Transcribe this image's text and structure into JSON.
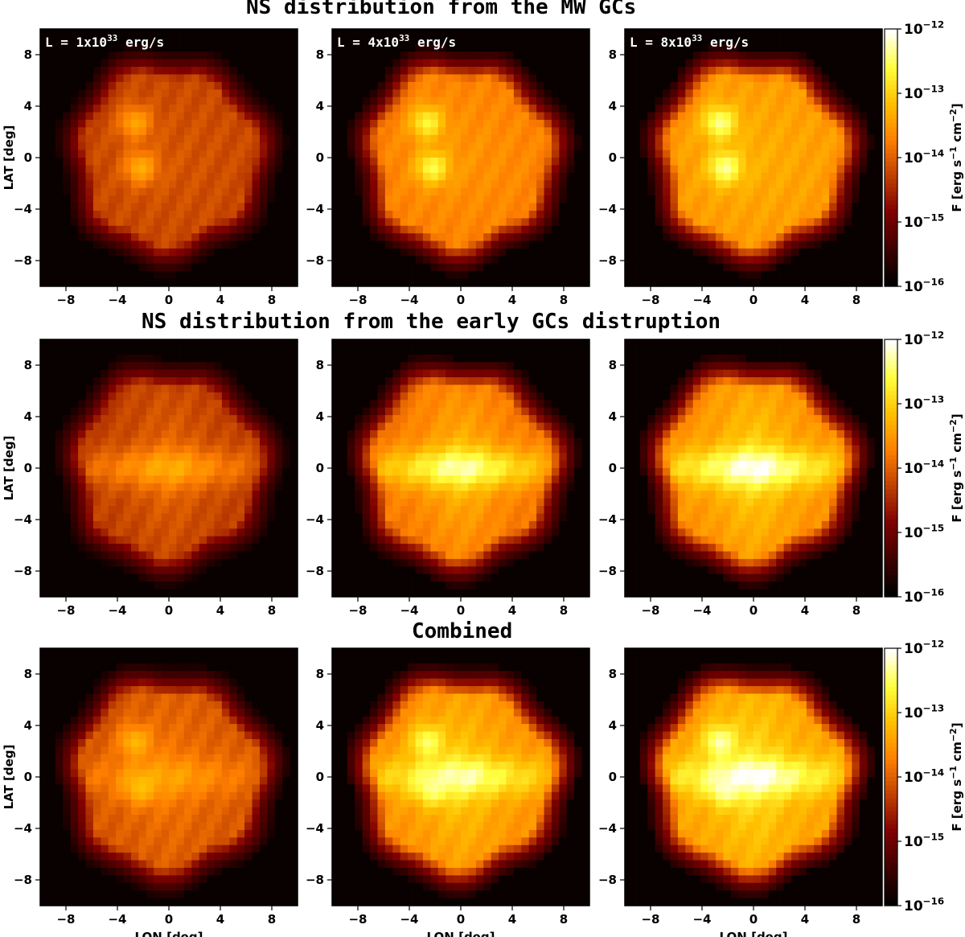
{
  "figure": {
    "title_row1": "NS distribution from the MW GCs",
    "title_row2": "NS distribution from the early GCs distruption",
    "title_row3": "Combined"
  },
  "colormap": {
    "name": "afmhot",
    "stops": [
      "#000000",
      "#400000",
      "#800000",
      "#c04000",
      "#ff8000",
      "#ffc000",
      "#ffff40",
      "#ffffff"
    ]
  },
  "chart_data": [
    {
      "type": "heatmap",
      "row": "MW GCs",
      "panel_label": "L = 1x10",
      "panel_label_exp": "33",
      "panel_label_unit": "erg/s",
      "luminosity_erg_s": 1e+33,
      "xlabel": "",
      "ylabel": "LAT [deg]",
      "xlim": [
        -10,
        10
      ],
      "ylim": [
        -10,
        10
      ],
      "xticks": [
        "-8",
        "-4",
        "0",
        "4",
        "8"
      ],
      "yticks": [
        "8",
        "4",
        "0",
        "-4",
        "-8"
      ],
      "disk_radius_deg": 7.6,
      "disk_base_level": 0.48,
      "hot_spots": [
        {
          "lon": -2.6,
          "lat": 2.7,
          "level": 0.66
        },
        {
          "lon": -2.2,
          "lat": -0.8,
          "level": 0.68
        }
      ],
      "colorbar": {
        "label": "F [erg s",
        "label_exp1": "−1",
        "label_mid": " cm",
        "label_exp2": "−2",
        "label_end": "]",
        "ticks": [
          "10",
          "10",
          "10",
          "10",
          "10"
        ],
        "tick_exps": [
          "−12",
          "−13",
          "−14",
          "−15",
          "−16"
        ],
        "vmin": 1e-16,
        "vmax": 1e-12
      }
    },
    {
      "type": "heatmap",
      "row": "MW GCs",
      "panel_label": "L = 4x10",
      "panel_label_exp": "33",
      "panel_label_unit": "erg/s",
      "luminosity_erg_s": 4e+33,
      "xlabel": "",
      "ylabel": "",
      "xlim": [
        -10,
        10
      ],
      "ylim": [
        -10,
        10
      ],
      "xticks": [
        "-8",
        "-4",
        "0",
        "4",
        "8"
      ],
      "yticks": [
        "8",
        "4",
        "0",
        "-4",
        "-8"
      ],
      "disk_radius_deg": 7.6,
      "disk_base_level": 0.62,
      "hot_spots": [
        {
          "lon": -2.6,
          "lat": 2.7,
          "level": 0.85
        },
        {
          "lon": -2.2,
          "lat": -0.8,
          "level": 0.87
        }
      ]
    },
    {
      "type": "heatmap",
      "row": "MW GCs",
      "panel_label": "L = 8x10",
      "panel_label_exp": "33",
      "panel_label_unit": "erg/s",
      "luminosity_erg_s": 8e+33,
      "xlabel": "",
      "ylabel": "",
      "xlim": [
        -10,
        10
      ],
      "ylim": [
        -10,
        10
      ],
      "xticks": [
        "-8",
        "-4",
        "0",
        "4",
        "8"
      ],
      "yticks": [
        "8",
        "4",
        "0",
        "-4",
        "-8"
      ],
      "disk_radius_deg": 7.6,
      "disk_base_level": 0.68,
      "hot_spots": [
        {
          "lon": -2.6,
          "lat": 2.7,
          "level": 0.92
        },
        {
          "lon": -2.2,
          "lat": -0.8,
          "level": 0.93
        }
      ]
    },
    {
      "type": "heatmap",
      "row": "early GCs disruption",
      "xlabel": "",
      "ylabel": "LAT [deg]",
      "xlim": [
        -10,
        10
      ],
      "ylim": [
        -10,
        10
      ],
      "xticks": [
        "-8",
        "-4",
        "0",
        "4",
        "8"
      ],
      "yticks": [
        "8",
        "4",
        "0",
        "-4",
        "-8"
      ],
      "disk_radius_deg": 7.7,
      "disk_base_level": 0.46,
      "central_bar": {
        "level": 0.62
      },
      "colorbar": {
        "label": "F [erg s",
        "label_exp1": "−1",
        "label_mid": " cm",
        "label_exp2": "−2",
        "label_end": "]",
        "ticks": [
          "10",
          "10",
          "10",
          "10",
          "10"
        ],
        "tick_exps": [
          "−12",
          "−13",
          "−14",
          "−15",
          "−16"
        ],
        "vmin": 1e-16,
        "vmax": 1e-12
      }
    },
    {
      "type": "heatmap",
      "row": "early GCs disruption",
      "xlabel": "",
      "ylabel": "",
      "xlim": [
        -10,
        10
      ],
      "ylim": [
        -10,
        10
      ],
      "xticks": [
        "-8",
        "-4",
        "0",
        "4",
        "8"
      ],
      "yticks": [
        "8",
        "4",
        "0",
        "-4",
        "-8"
      ],
      "disk_radius_deg": 7.7,
      "disk_base_level": 0.6,
      "central_bar": {
        "level": 0.86
      }
    },
    {
      "type": "heatmap",
      "row": "early GCs disruption",
      "xlabel": "",
      "ylabel": "",
      "xlim": [
        -10,
        10
      ],
      "ylim": [
        -10,
        10
      ],
      "xticks": [
        "-8",
        "-4",
        "0",
        "4",
        "8"
      ],
      "yticks": [
        "8",
        "4",
        "0",
        "-4",
        "-8"
      ],
      "disk_radius_deg": 7.7,
      "disk_base_level": 0.66,
      "central_bar": {
        "level": 0.92
      }
    },
    {
      "type": "heatmap",
      "row": "Combined",
      "xlabel": "LON [deg]",
      "ylabel": "LAT [deg]",
      "xlim": [
        -10,
        10
      ],
      "ylim": [
        -10,
        10
      ],
      "xticks": [
        "-8",
        "-4",
        "0",
        "4",
        "8"
      ],
      "yticks": [
        "8",
        "4",
        "0",
        "-4",
        "-8"
      ],
      "disk_radius_deg": 7.8,
      "disk_base_level": 0.52,
      "central_bar": {
        "level": 0.62
      },
      "hot_spots": [
        {
          "lon": -2.6,
          "lat": 2.7,
          "level": 0.7
        },
        {
          "lon": -2.2,
          "lat": -0.8,
          "level": 0.72
        }
      ],
      "colorbar": {
        "label": "F [erg s",
        "label_exp1": "−1",
        "label_mid": " cm",
        "label_exp2": "−2",
        "label_end": "]",
        "ticks": [
          "10",
          "10",
          "10",
          "10",
          "10"
        ],
        "tick_exps": [
          "−12",
          "−13",
          "−14",
          "−15",
          "−16"
        ],
        "vmin": 1e-16,
        "vmax": 1e-12
      }
    },
    {
      "type": "heatmap",
      "row": "Combined",
      "xlabel": "LON [deg]",
      "ylabel": "",
      "xlim": [
        -10,
        10
      ],
      "ylim": [
        -10,
        10
      ],
      "xticks": [
        "-8",
        "-4",
        "0",
        "4",
        "8"
      ],
      "yticks": [
        "8",
        "4",
        "0",
        "-4",
        "-8"
      ],
      "disk_radius_deg": 7.8,
      "disk_base_level": 0.66,
      "central_bar": {
        "level": 0.88
      },
      "hot_spots": [
        {
          "lon": -2.6,
          "lat": 2.7,
          "level": 0.9
        },
        {
          "lon": -2.2,
          "lat": -0.8,
          "level": 0.92
        }
      ]
    },
    {
      "type": "heatmap",
      "row": "Combined",
      "xlabel": "LON [deg]",
      "ylabel": "",
      "xlim": [
        -10,
        10
      ],
      "ylim": [
        -10,
        10
      ],
      "xticks": [
        "-8",
        "-4",
        "0",
        "4",
        "8"
      ],
      "yticks": [
        "8",
        "4",
        "0",
        "-4",
        "-8"
      ],
      "disk_radius_deg": 7.8,
      "disk_base_level": 0.7,
      "central_bar": {
        "level": 0.94
      },
      "hot_spots": [
        {
          "lon": -2.6,
          "lat": 2.7,
          "level": 0.95
        },
        {
          "lon": -2.2,
          "lat": -0.8,
          "level": 0.96
        }
      ]
    }
  ]
}
